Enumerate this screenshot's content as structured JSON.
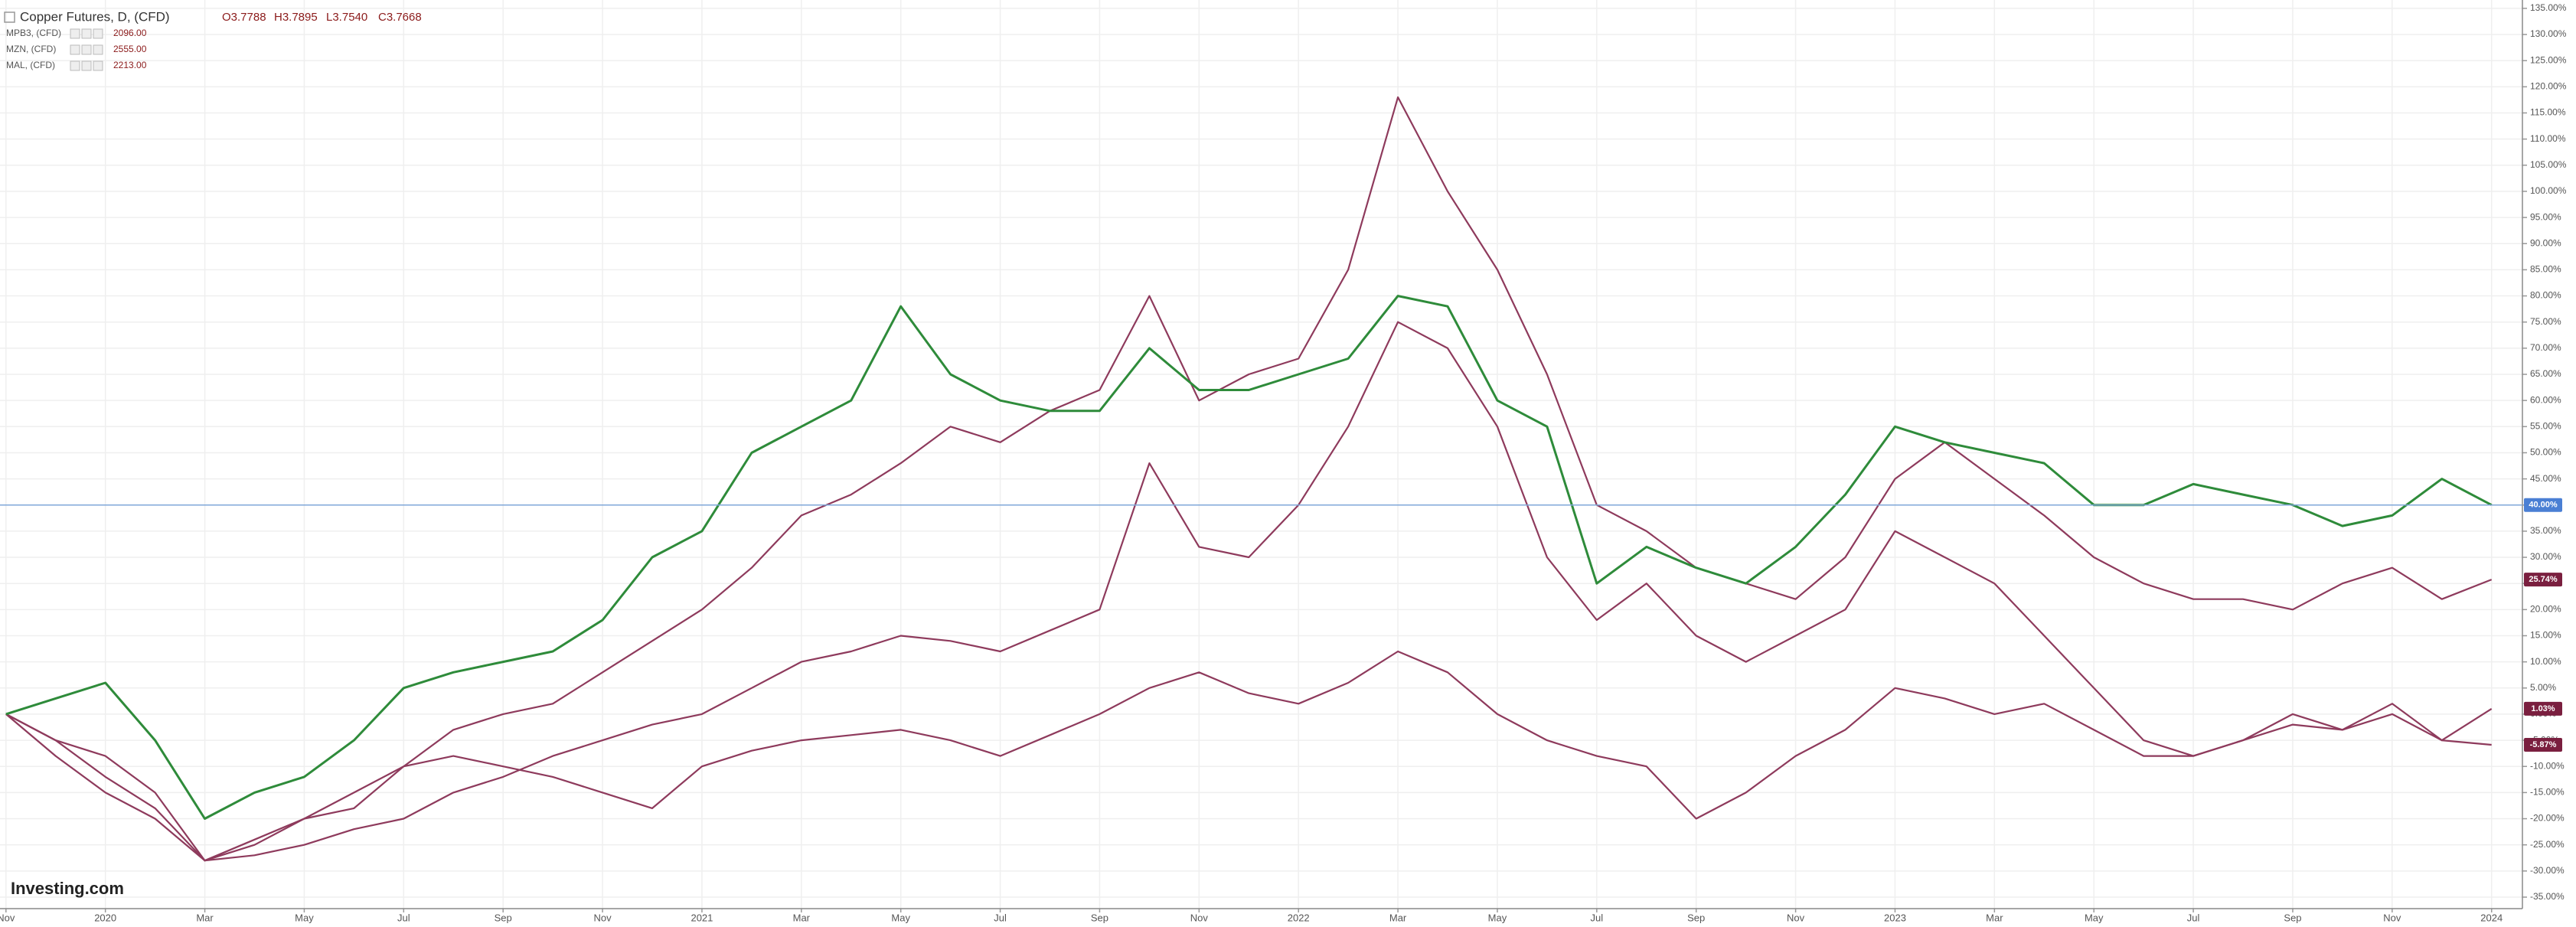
{
  "chart_data": {
    "type": "line",
    "title": "Copper Futures, D, (CFD)",
    "ohlc": [
      "O3.7788",
      "H3.7895",
      "L3.7540",
      "C3.7668"
    ],
    "watermark": "Investing.com",
    "x": [
      0,
      1,
      2,
      3,
      4,
      5,
      6,
      7,
      8,
      9,
      10,
      11,
      12,
      13,
      14,
      15,
      16,
      17,
      18,
      19,
      20,
      21,
      22,
      23,
      24,
      25,
      26,
      27,
      28,
      29,
      30,
      31,
      32,
      33,
      34,
      35,
      36,
      37,
      38,
      39,
      40,
      41,
      42,
      43,
      44,
      45,
      46,
      47,
      48,
      49,
      50
    ],
    "xlim": [
      -0.12,
      50.62
    ],
    "xticks": [
      {
        "value": 0,
        "label": "Nov"
      },
      {
        "value": 2,
        "label": "2020"
      },
      {
        "value": 4,
        "label": "Mar"
      },
      {
        "value": 6,
        "label": "May"
      },
      {
        "value": 8,
        "label": "Jul"
      },
      {
        "value": 10,
        "label": "Sep"
      },
      {
        "value": 12,
        "label": "Nov"
      },
      {
        "value": 14,
        "label": "2021"
      },
      {
        "value": 16,
        "label": "Mar"
      },
      {
        "value": 18,
        "label": "May"
      },
      {
        "value": 20,
        "label": "Jul"
      },
      {
        "value": 22,
        "label": "Sep"
      },
      {
        "value": 24,
        "label": "Nov"
      },
      {
        "value": 26,
        "label": "2022"
      },
      {
        "value": 28,
        "label": "Mar"
      },
      {
        "value": 30,
        "label": "May"
      },
      {
        "value": 32,
        "label": "Jul"
      },
      {
        "value": 34,
        "label": "Sep"
      },
      {
        "value": 36,
        "label": "Nov"
      },
      {
        "value": 38,
        "label": "2023"
      },
      {
        "value": 40,
        "label": "Mar"
      },
      {
        "value": 42,
        "label": "May"
      },
      {
        "value": 44,
        "label": "Jul"
      },
      {
        "value": 46,
        "label": "Sep"
      },
      {
        "value": 48,
        "label": "Nov"
      },
      {
        "value": 50,
        "label": "2024"
      }
    ],
    "ylim": [
      -37.2,
      136.6
    ],
    "yticks": [
      {
        "value": 135,
        "label": "135.00%"
      },
      {
        "value": 130,
        "label": "130.00%"
      },
      {
        "value": 125,
        "label": "125.00%"
      },
      {
        "value": 120,
        "label": "120.00%"
      },
      {
        "value": 115,
        "label": "115.00%"
      },
      {
        "value": 110,
        "label": "110.00%"
      },
      {
        "value": 105,
        "label": "105.00%"
      },
      {
        "value": 100,
        "label": "100.00%"
      },
      {
        "value": 95,
        "label": "95.00%"
      },
      {
        "value": 90,
        "label": "90.00%"
      },
      {
        "value": 85,
        "label": "85.00%"
      },
      {
        "value": 80,
        "label": "80.00%"
      },
      {
        "value": 75,
        "label": "75.00%"
      },
      {
        "value": 70,
        "label": "70.00%"
      },
      {
        "value": 65,
        "label": "65.00%"
      },
      {
        "value": 60,
        "label": "60.00%"
      },
      {
        "value": 55,
        "label": "55.00%"
      },
      {
        "value": 50,
        "label": "50.00%"
      },
      {
        "value": 45,
        "label": "45.00%"
      },
      {
        "value": 40,
        "label": "40.00%"
      },
      {
        "value": 35,
        "label": "35.00%"
      },
      {
        "value": 30,
        "label": "30.00%"
      },
      {
        "value": 25,
        "label": "25.00%"
      },
      {
        "value": 20,
        "label": "20.00%"
      },
      {
        "value": 15,
        "label": "15.00%"
      },
      {
        "value": 10,
        "label": "10.00%"
      },
      {
        "value": 5,
        "label": "5.00%"
      },
      {
        "value": 0,
        "label": "0.00%"
      },
      {
        "value": -5,
        "label": "-5.00%"
      },
      {
        "value": -10,
        "label": "-10.00%"
      },
      {
        "value": -15,
        "label": "-15.00%"
      },
      {
        "value": -20,
        "label": "-20.00%"
      },
      {
        "value": -25,
        "label": "-25.00%"
      },
      {
        "value": -30,
        "label": "-30.00%"
      },
      {
        "value": -35,
        "label": "-35.00%"
      }
    ],
    "grid": true,
    "series": [
      {
        "name": "Copper Futures, D, (CFD)",
        "color": "#2e8b3a",
        "price_line": true,
        "last_value_label": "40.00%",
        "label_color": "#4a7fd4",
        "values": [
          0,
          3,
          6,
          -5,
          -20,
          -15,
          -12,
          -5,
          5,
          8,
          10,
          12,
          18,
          30,
          35,
          50,
          55,
          60,
          78,
          65,
          60,
          58,
          58,
          70,
          62,
          62,
          65,
          68,
          80,
          78,
          60,
          55,
          25,
          32,
          28,
          25,
          32,
          42,
          55,
          52,
          50,
          48,
          40,
          40,
          44,
          42,
          40,
          36,
          38,
          45,
          40
        ]
      },
      {
        "name": "MPB3, (CFD)",
        "price": "2096.00",
        "color": "#8e3a5c",
        "last_value_label": "25.74%",
        "label_color": "#7a1f3f",
        "values": [
          0,
          -5,
          -8,
          -15,
          -28,
          -25,
          -20,
          -18,
          -10,
          -3,
          0,
          2,
          8,
          14,
          20,
          28,
          38,
          42,
          48,
          55,
          52,
          58,
          62,
          80,
          60,
          65,
          68,
          85,
          118,
          100,
          85,
          65,
          40,
          35,
          28,
          25,
          22,
          30,
          45,
          52,
          45,
          38,
          30,
          25,
          22,
          22,
          20,
          25,
          28,
          22,
          25.74
        ]
      },
      {
        "name": "MZN, (CFD)",
        "price": "2555.00",
        "color": "#8e3a5c",
        "last_value_label": "1.03%",
        "label_color": "#7a1f3f",
        "values": [
          0,
          -8,
          -15,
          -20,
          -28,
          -27,
          -25,
          -22,
          -20,
          -15,
          -12,
          -8,
          -5,
          -2,
          0,
          5,
          10,
          12,
          15,
          14,
          12,
          16,
          20,
          48,
          32,
          30,
          40,
          55,
          75,
          70,
          55,
          30,
          18,
          25,
          15,
          10,
          15,
          20,
          35,
          30,
          25,
          15,
          5,
          -5,
          -8,
          -5,
          -2,
          -3,
          0,
          -5,
          1.03
        ]
      },
      {
        "name": "MAL, (CFD)",
        "price": "2213.00",
        "color": "#8e3a5c",
        "last_value_label": "-5.87%",
        "label_color": "#7a1f3f",
        "values": [
          0,
          -5,
          -12,
          -18,
          -28,
          -24,
          -20,
          -15,
          -10,
          -8,
          -10,
          -12,
          -15,
          -18,
          -10,
          -7,
          -5,
          -4,
          -3,
          -5,
          -8,
          -4,
          0,
          5,
          8,
          4,
          2,
          6,
          12,
          8,
          0,
          -5,
          -8,
          -10,
          -20,
          -15,
          -8,
          -3,
          5,
          3,
          0,
          2,
          -3,
          -8,
          -8,
          -5,
          0,
          -3,
          2,
          -5,
          -5.87
        ]
      }
    ]
  }
}
